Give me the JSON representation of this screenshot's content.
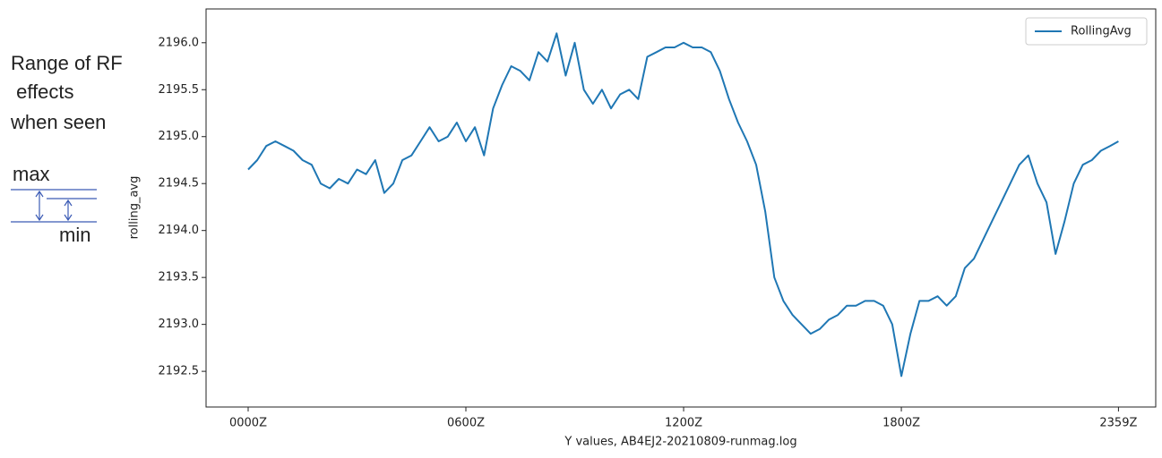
{
  "chart_data": {
    "type": "line",
    "ylabel": "rolling_avg",
    "xlabel": "Y values, AB4EJ2-20210809-runmag.log",
    "annotation": {
      "lines": [
        "Range of RF",
        " effects",
        "when seen"
      ],
      "max": "max",
      "min": "min"
    },
    "legend": "upper right",
    "xlim": [
      -1.16,
      25.01
    ],
    "ylim": [
      2192.12,
      2196.36
    ],
    "xticks": [
      {
        "value": 0,
        "label": "0000Z"
      },
      {
        "value": 6,
        "label": "0600Z"
      },
      {
        "value": 12,
        "label": "1200Z"
      },
      {
        "value": 18,
        "label": "1800Z"
      },
      {
        "value": 23.983,
        "label": "2359Z"
      }
    ],
    "yticks": [
      2192.5,
      {
        "value": 2193,
        "label": "2193.0"
      },
      2193.5,
      {
        "value": 2194,
        "label": "2194.0"
      },
      2194.5,
      {
        "value": 2195,
        "label": "2195.0"
      },
      2195.5,
      {
        "value": 2196,
        "label": "2196.0"
      }
    ],
    "x": [
      0,
      0.25,
      0.5,
      0.75,
      1,
      1.25,
      1.5,
      1.75,
      2,
      2.25,
      2.5,
      2.75,
      3,
      3.25,
      3.5,
      3.75,
      4,
      4.25,
      4.5,
      4.75,
      5,
      5.25,
      5.5,
      5.75,
      6,
      6.25,
      6.5,
      6.75,
      7,
      7.25,
      7.5,
      7.75,
      8,
      8.25,
      8.5,
      8.75,
      9,
      9.25,
      9.5,
      9.75,
      10,
      10.25,
      10.5,
      10.75,
      11,
      11.25,
      11.5,
      11.75,
      12,
      12.25,
      12.5,
      12.75,
      13,
      13.25,
      13.5,
      13.75,
      14,
      14.25,
      14.5,
      14.75,
      15,
      15.25,
      15.5,
      15.75,
      16,
      16.25,
      16.5,
      16.75,
      17,
      17.25,
      17.5,
      17.75,
      18,
      18.25,
      18.5,
      18.75,
      19,
      19.25,
      19.5,
      19.75,
      20,
      20.25,
      20.5,
      20.75,
      21,
      21.25,
      21.5,
      21.75,
      22,
      22.25,
      22.5,
      22.75,
      23,
      23.25,
      23.5,
      23.75,
      23.983
    ],
    "series": [
      {
        "name": "RollingAvg",
        "color": "#1f77b4",
        "values": [
          2194.65,
          2194.75,
          2194.9,
          2194.95,
          2194.9,
          2194.85,
          2194.75,
          2194.7,
          2194.5,
          2194.45,
          2194.55,
          2194.5,
          2194.65,
          2194.6,
          2194.75,
          2194.4,
          2194.5,
          2194.75,
          2194.8,
          2194.95,
          2195.1,
          2194.95,
          2195.0,
          2195.15,
          2194.95,
          2195.1,
          2194.8,
          2195.3,
          2195.55,
          2195.75,
          2195.7,
          2195.6,
          2195.9,
          2195.8,
          2196.1,
          2195.65,
          2196.0,
          2195.5,
          2195.35,
          2195.5,
          2195.3,
          2195.45,
          2195.5,
          2195.4,
          2195.85,
          2195.9,
          2195.95,
          2195.95,
          2196.0,
          2195.95,
          2195.95,
          2195.9,
          2195.7,
          2195.4,
          2195.15,
          2194.95,
          2194.7,
          2194.2,
          2193.5,
          2193.25,
          2193.1,
          2193.0,
          2192.9,
          2192.95,
          2193.05,
          2193.1,
          2193.2,
          2193.2,
          2193.25,
          2193.25,
          2193.2,
          2193.0,
          2192.45,
          2192.9,
          2193.25,
          2193.25,
          2193.3,
          2193.2,
          2193.3,
          2193.6,
          2193.7,
          2193.9,
          2194.1,
          2194.3,
          2194.5,
          2194.7,
          2194.8,
          2194.5,
          2194.3,
          2193.75,
          2194.1,
          2194.5,
          2194.7,
          2194.75,
          2194.85,
          2194.9,
          2194.95
        ]
      }
    ]
  }
}
